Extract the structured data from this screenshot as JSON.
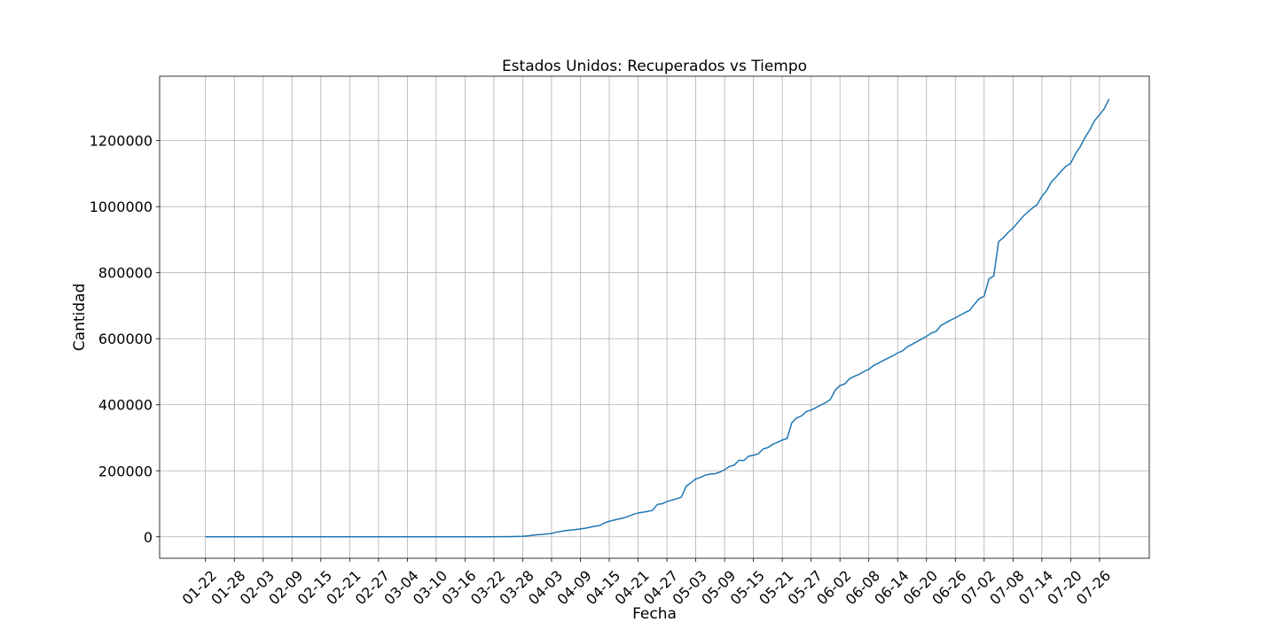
{
  "chart_data": {
    "type": "line",
    "title": "Estados Unidos: Recuperados vs Tiempo",
    "xlabel": "Fecha",
    "ylabel": "Cantidad",
    "grid": true,
    "legend": "none",
    "x_start": "2020-01-22",
    "x_end": "2020-07-27",
    "ylim": [
      -65000,
      1395000
    ],
    "x_ticks": [
      "01-22",
      "01-28",
      "02-03",
      "02-09",
      "02-15",
      "02-21",
      "02-27",
      "03-04",
      "03-10",
      "03-16",
      "03-22",
      "03-28",
      "04-03",
      "04-09",
      "04-15",
      "04-21",
      "04-27",
      "05-03",
      "05-09",
      "05-15",
      "05-21",
      "05-27",
      "06-02",
      "06-08",
      "06-14",
      "06-20",
      "06-26",
      "07-02",
      "07-08",
      "07-14",
      "07-20",
      "07-26"
    ],
    "y_ticks": [
      0,
      200000,
      400000,
      600000,
      800000,
      1000000,
      1200000
    ],
    "series": [
      {
        "color": "#1f77b4",
        "points": [
          [
            "01-22",
            0
          ],
          [
            "02-29",
            7
          ],
          [
            "03-10",
            8
          ],
          [
            "03-20",
            108
          ],
          [
            "03-25",
            400
          ],
          [
            "03-28",
            1500
          ],
          [
            "03-29",
            2700
          ],
          [
            "03-31",
            6000
          ],
          [
            "04-01",
            7100
          ],
          [
            "04-02",
            8500
          ],
          [
            "04-03",
            10000
          ],
          [
            "04-04",
            14000
          ],
          [
            "04-06",
            19000
          ],
          [
            "04-08",
            22000
          ],
          [
            "04-10",
            26000
          ],
          [
            "04-12",
            32000
          ],
          [
            "04-13",
            34000
          ],
          [
            "04-14",
            42000
          ],
          [
            "04-15",
            47000
          ],
          [
            "04-17",
            54000
          ],
          [
            "04-18",
            57000
          ],
          [
            "04-19",
            62000
          ],
          [
            "04-20",
            68000
          ],
          [
            "04-21",
            72000
          ],
          [
            "04-23",
            77000
          ],
          [
            "04-24",
            80000
          ],
          [
            "04-25",
            98000
          ],
          [
            "04-26",
            100000
          ],
          [
            "04-27",
            107000
          ],
          [
            "04-28",
            111000
          ],
          [
            "04-29",
            115000
          ],
          [
            "04-30",
            120000
          ],
          [
            "05-01",
            153000
          ],
          [
            "05-02",
            164000
          ],
          [
            "05-03",
            175000
          ],
          [
            "05-04",
            180000
          ],
          [
            "05-05",
            187000
          ],
          [
            "05-06",
            190000
          ],
          [
            "05-07",
            191000
          ],
          [
            "05-08",
            196000
          ],
          [
            "05-09",
            203000
          ],
          [
            "05-10",
            213000
          ],
          [
            "05-11",
            217000
          ],
          [
            "05-12",
            232000
          ],
          [
            "05-13",
            231000
          ],
          [
            "05-14",
            244000
          ],
          [
            "05-15",
            247000
          ],
          [
            "05-16",
            251000
          ],
          [
            "05-17",
            266000
          ],
          [
            "05-18",
            270000
          ],
          [
            "05-19",
            280000
          ],
          [
            "05-20",
            286000
          ],
          [
            "05-21",
            293000
          ],
          [
            "05-22",
            298000
          ],
          [
            "05-23",
            346000
          ],
          [
            "05-24",
            360000
          ],
          [
            "05-25",
            366000
          ],
          [
            "05-26",
            379000
          ],
          [
            "05-27",
            384000
          ],
          [
            "05-28",
            391000
          ],
          [
            "05-29",
            399000
          ],
          [
            "05-30",
            406000
          ],
          [
            "05-31",
            416000
          ],
          [
            "06-01",
            444000
          ],
          [
            "06-02",
            458000
          ],
          [
            "06-03",
            463000
          ],
          [
            "06-04",
            479000
          ],
          [
            "06-05",
            486000
          ],
          [
            "06-06",
            492000
          ],
          [
            "06-07",
            501000
          ],
          [
            "06-08",
            507000
          ],
          [
            "06-09",
            519000
          ],
          [
            "06-10",
            526000
          ],
          [
            "06-11",
            534000
          ],
          [
            "06-12",
            541000
          ],
          [
            "06-13",
            548000
          ],
          [
            "06-14",
            557000
          ],
          [
            "06-15",
            563000
          ],
          [
            "06-16",
            575000
          ],
          [
            "06-17",
            583000
          ],
          [
            "06-18",
            591000
          ],
          [
            "06-19",
            599000
          ],
          [
            "06-20",
            607000
          ],
          [
            "06-21",
            617000
          ],
          [
            "06-22",
            622000
          ],
          [
            "06-23",
            640000
          ],
          [
            "06-24",
            648000
          ],
          [
            "06-25",
            656000
          ],
          [
            "06-26",
            663000
          ],
          [
            "06-27",
            671000
          ],
          [
            "06-28",
            679000
          ],
          [
            "06-29",
            686000
          ],
          [
            "06-30",
            705000
          ],
          [
            "07-01",
            721000
          ],
          [
            "07-02",
            729000
          ],
          [
            "07-03",
            781000
          ],
          [
            "07-04",
            790000
          ],
          [
            "07-05",
            894000
          ],
          [
            "07-06",
            906000
          ],
          [
            "07-07",
            922000
          ],
          [
            "07-08",
            935000
          ],
          [
            "07-09",
            952000
          ],
          [
            "07-10",
            969000
          ],
          [
            "07-11",
            983000
          ],
          [
            "07-12",
            995000
          ],
          [
            "07-13",
            1006000
          ],
          [
            "07-14",
            1031000
          ],
          [
            "07-15",
            1049000
          ],
          [
            "07-16",
            1075000
          ],
          [
            "07-17",
            1090000
          ],
          [
            "07-18",
            1107000
          ],
          [
            "07-19",
            1122000
          ],
          [
            "07-20",
            1131000
          ],
          [
            "07-21",
            1160000
          ],
          [
            "07-22",
            1182000
          ],
          [
            "07-23",
            1210000
          ],
          [
            "07-24",
            1233000
          ],
          [
            "07-25",
            1261000
          ],
          [
            "07-26",
            1278000
          ],
          [
            "07-27",
            1297000
          ],
          [
            "07-28",
            1326000
          ]
        ]
      }
    ]
  }
}
